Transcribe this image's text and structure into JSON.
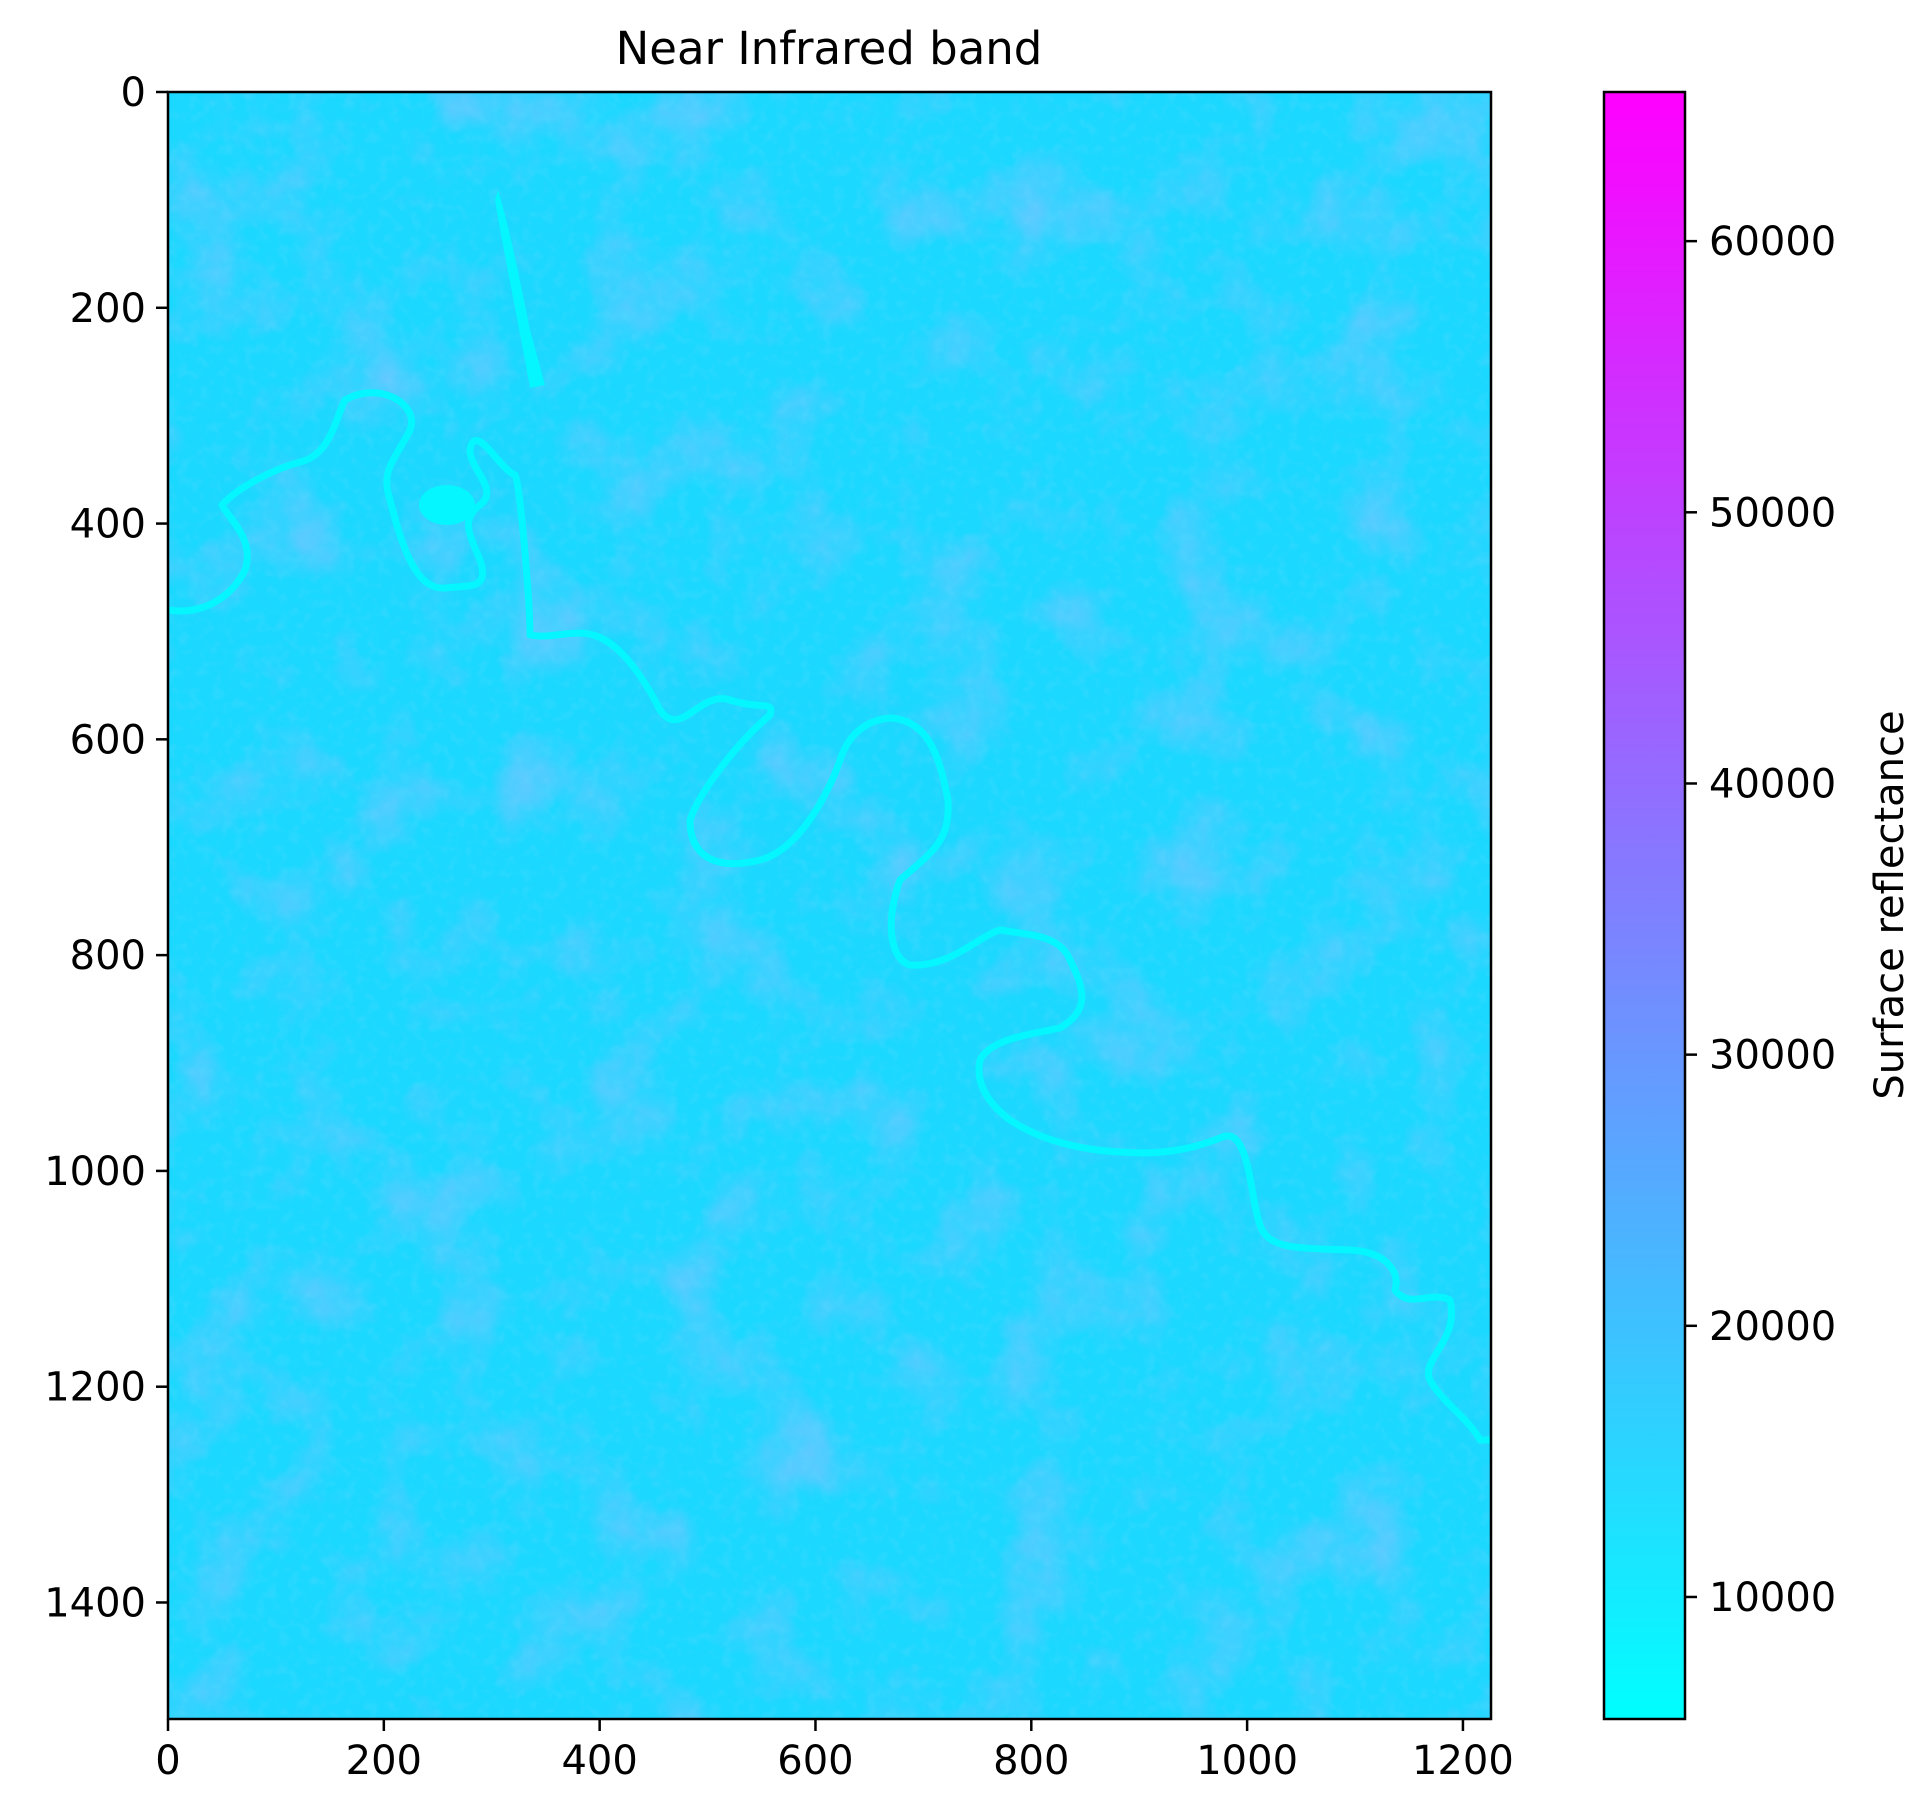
{
  "chart_data": {
    "type": "heatmap",
    "title": "Near Infrared band",
    "xlabel": "",
    "ylabel": "",
    "x_range": [
      0,
      1226
    ],
    "y_range": [
      0,
      1508
    ],
    "y_inverted": true,
    "x_ticks": [
      0,
      200,
      400,
      600,
      800,
      1000,
      1200
    ],
    "y_ticks": [
      0,
      200,
      400,
      600,
      800,
      1000,
      1200,
      1400
    ],
    "colormap": "cool",
    "colormap_stops": [
      "#00ffff",
      "#ff00ff"
    ],
    "colorbar": {
      "label": "Surface reflectance",
      "range": [
        5500,
        65500
      ],
      "ticks": [
        10000,
        20000,
        30000,
        40000,
        50000,
        60000
      ]
    },
    "image_description_values": {
      "typical_reflectance": 14000,
      "water_reflectance": 9000,
      "vegetation_reflectance": 18000
    },
    "grid": false,
    "colors": {
      "background": "#ffffff",
      "axis": "#000000",
      "image_base": "#1ad8ff",
      "water": "#05f6ff",
      "vegetation": "#33c2ff"
    }
  }
}
